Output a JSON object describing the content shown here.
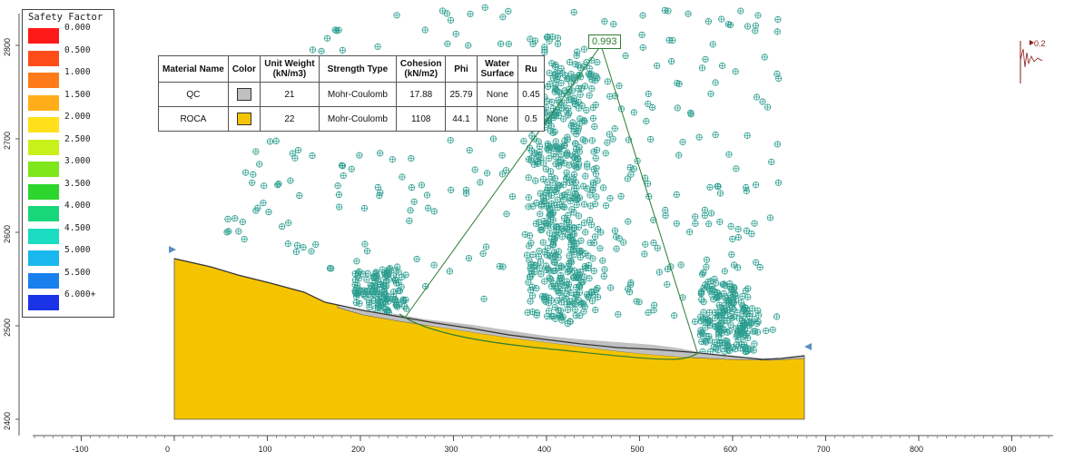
{
  "legend": {
    "title": "Safety Factor",
    "items": [
      {
        "label": "0.000",
        "color": "#ff1a1a"
      },
      {
        "label": "0.500",
        "color": "#ff4d1a"
      },
      {
        "label": "1.000",
        "color": "#ff7a1a"
      },
      {
        "label": "1.500",
        "color": "#ffae1a"
      },
      {
        "label": "2.000",
        "color": "#ffe01a"
      },
      {
        "label": "2.500",
        "color": "#c8f01a"
      },
      {
        "label": "3.000",
        "color": "#7ee61a"
      },
      {
        "label": "3.500",
        "color": "#2cd62c"
      },
      {
        "label": "4.000",
        "color": "#1ad67a"
      },
      {
        "label": "4.500",
        "color": "#1adcc0"
      },
      {
        "label": "5.000",
        "color": "#1ab8ee"
      },
      {
        "label": "5.500",
        "color": "#1a80ee"
      },
      {
        "label": "6.000+",
        "color": "#1a33e6"
      }
    ]
  },
  "materials": {
    "headers": [
      "Material Name",
      "Color",
      "Unit Weight (kN/m3)",
      "Strength Type",
      "Cohesion (kN/m2)",
      "Phi",
      "Water Surface",
      "Ru"
    ],
    "rows": [
      {
        "name": "QC",
        "color": "#c0c0c0",
        "unit_weight": "21",
        "strength_type": "Mohr-Coulomb",
        "cohesion": "17.88",
        "phi": "25.79",
        "water_surface": "None",
        "ru": "0.45"
      },
      {
        "name": "ROCA",
        "color": "#f5c400",
        "unit_weight": "22",
        "strength_type": "Mohr-Coulomb",
        "cohesion": "1108",
        "phi": "44.1",
        "water_surface": "None",
        "ru": "0.5"
      }
    ]
  },
  "critical_fs": "0.993",
  "seismic_label": "0.2",
  "axes": {
    "x_ticks": [
      "-100",
      "0",
      "100",
      "200",
      "300",
      "400",
      "500",
      "600",
      "700",
      "800",
      "900"
    ],
    "y_ticks": [
      "2800",
      "2700",
      "2600",
      "2500",
      "2400"
    ]
  },
  "colors": {
    "rock": "#f5c400",
    "qc_layer": "#c0c0c0",
    "slip_grid_marker": "#2a9d8f",
    "critical_surface": "#2e7d32"
  }
}
